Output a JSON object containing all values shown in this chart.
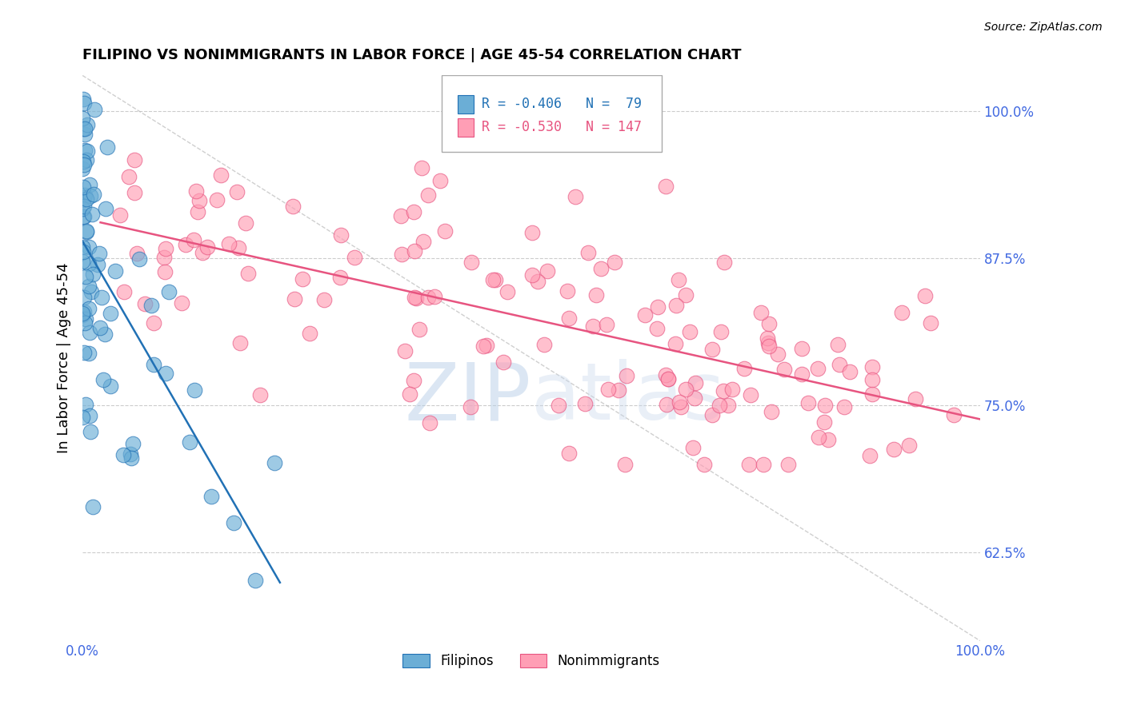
{
  "title": "FILIPINO VS NONIMMIGRANTS IN LABOR FORCE | AGE 45-54 CORRELATION CHART",
  "source": "Source: ZipAtlas.com",
  "xlabel": "",
  "ylabel": "In Labor Force | Age 45-54",
  "xlim": [
    0.0,
    1.0
  ],
  "ylim": [
    0.55,
    1.03
  ],
  "yticks": [
    0.625,
    0.75,
    0.875,
    1.0
  ],
  "ytick_labels": [
    "62.5%",
    "75.0%",
    "87.5%",
    "100.0%"
  ],
  "filipino_R": -0.406,
  "filipino_N": 79,
  "nonimm_R": -0.53,
  "nonimm_N": 147,
  "filipino_color": "#6baed6",
  "nonimm_color": "#ff9eb5",
  "filipino_line_color": "#2171b5",
  "nonimm_line_color": "#e75480",
  "axis_color": "#4169e1",
  "background_color": "#ffffff",
  "grid_color": "#cccccc"
}
